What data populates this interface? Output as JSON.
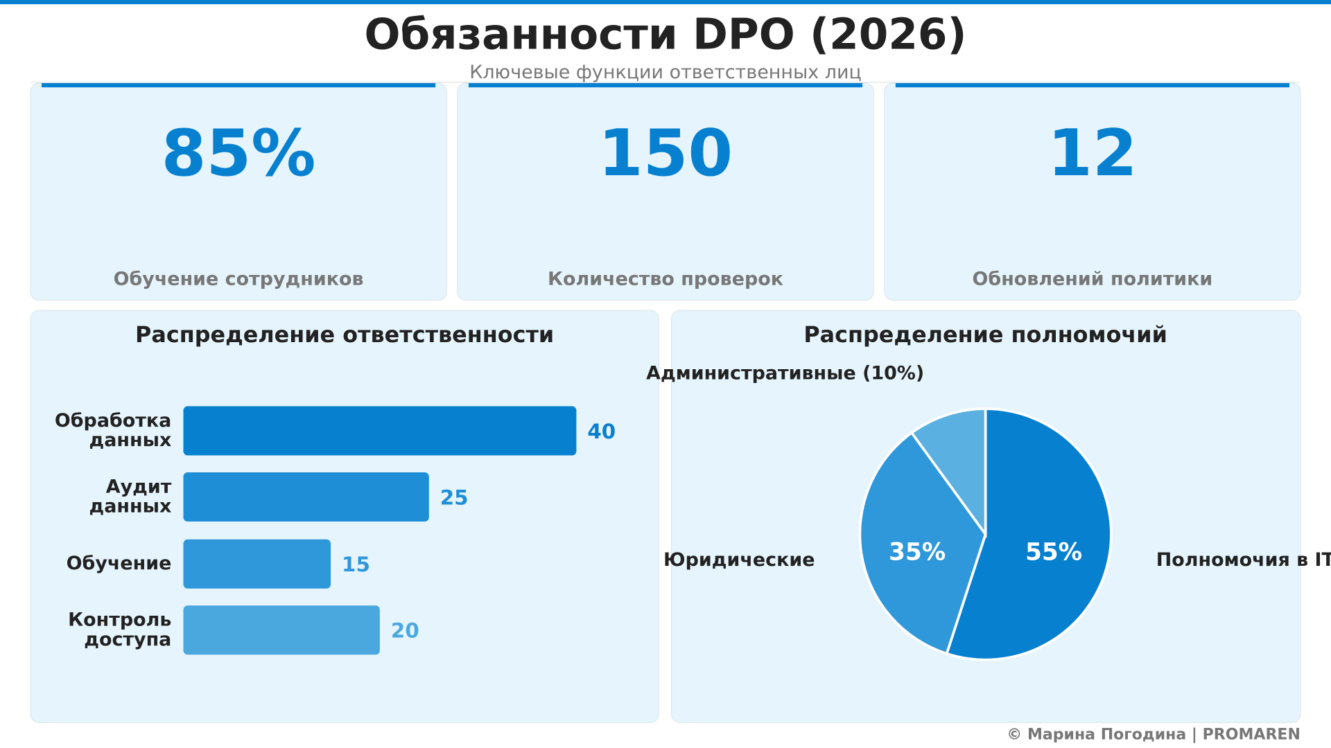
{
  "header": {
    "title": "Обязанности DPO (2026)",
    "subtitle": "Ключевые функции ответственных лиц"
  },
  "kpis": [
    {
      "value": "85%",
      "label": "Обучение сотрудников"
    },
    {
      "value": "150",
      "label": "Количество проверок"
    },
    {
      "value": "12",
      "label": "Обновлений политики"
    }
  ],
  "chart_data": [
    {
      "type": "bar",
      "title": "Распределение ответственности",
      "categories": [
        "Обработка данных",
        "Аудит данных",
        "Обучение",
        "Контроль доступа"
      ],
      "values": [
        40,
        25,
        15,
        20
      ],
      "colors": [
        "#0780d0",
        "#1e8fd6",
        "#2f98da",
        "#4aa8de"
      ]
    },
    {
      "type": "pie",
      "title": "Распределение полномочий",
      "categories": [
        "Полномочия в IT",
        "Юридические",
        "Административные (10%)"
      ],
      "values": [
        55,
        35,
        10
      ],
      "value_labels": [
        "55%",
        "35%",
        null
      ],
      "colors": [
        "#0780d0",
        "#2f98da",
        "#5ab0e0"
      ]
    }
  ],
  "footer": "© Марина Погодина | PROMAREN"
}
